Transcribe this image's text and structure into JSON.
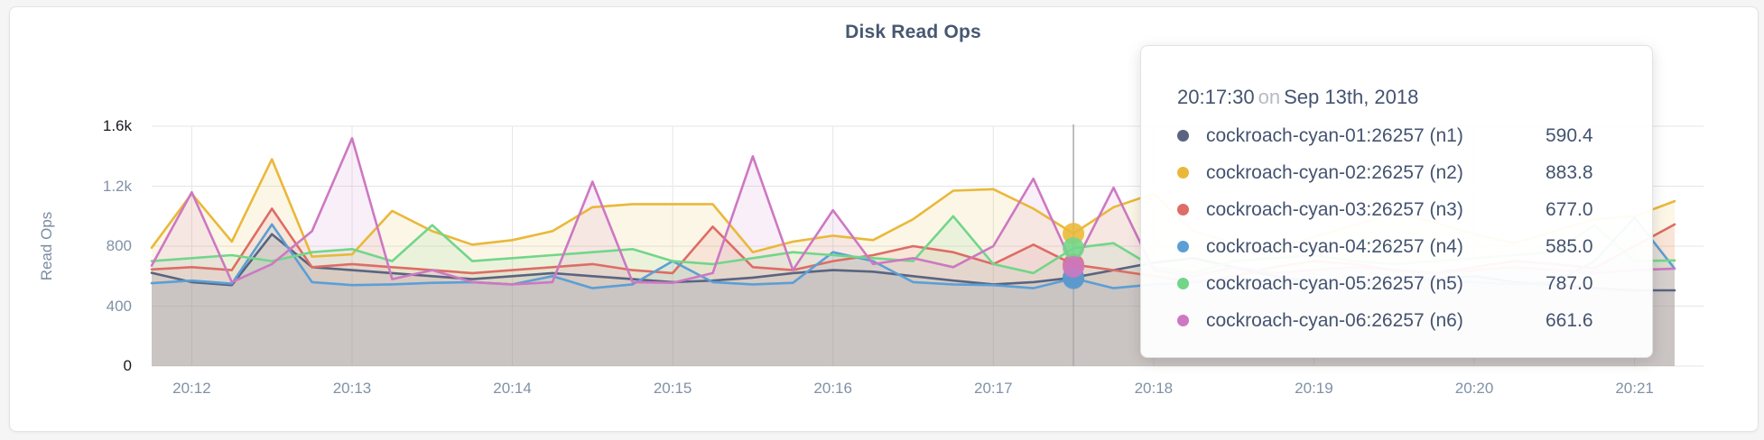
{
  "page": {
    "title": "Disk Read Ops"
  },
  "y_axis": {
    "label": "Read Ops"
  },
  "tooltip": {
    "time": "20:17:30",
    "preposition": "on",
    "date": "Sep 13th, 2018",
    "rows": [
      {
        "label": "cockroach-cyan-01:26257 (n1)",
        "value": "590.4"
      },
      {
        "label": "cockroach-cyan-02:26257 (n2)",
        "value": "883.8"
      },
      {
        "label": "cockroach-cyan-03:26257 (n3)",
        "value": "677.0"
      },
      {
        "label": "cockroach-cyan-04:26257 (n4)",
        "value": "585.0"
      },
      {
        "label": "cockroach-cyan-05:26257 (n5)",
        "value": "787.0"
      },
      {
        "label": "cockroach-cyan-06:26257 (n6)",
        "value": "661.6"
      }
    ]
  },
  "colors": {
    "title_text": "#475872",
    "axis_text": "#8091a7",
    "axis_extreme_text": "#16191f",
    "grid": "#e5e5e5",
    "crosshair": "#a9a9ab",
    "card_background": "#ffffff",
    "page_background": "#f5f5f6"
  },
  "chart_data": {
    "type": "line",
    "title": "Disk Read Ops",
    "xlabel": "",
    "ylabel": "Read Ops",
    "ylim": [
      0,
      1600
    ],
    "grid": true,
    "x_start": "20:11:45",
    "x_interval_seconds": 15,
    "x_tick_labels": [
      "20:12",
      "20:13",
      "20:14",
      "20:15",
      "20:16",
      "20:17",
      "20:18",
      "20:19",
      "20:20",
      "20:21"
    ],
    "y_ticks": [
      0,
      400,
      800,
      1200,
      1600
    ],
    "y_tick_labels": [
      "0",
      "400",
      "800",
      "1.2k",
      "1.6k"
    ],
    "crosshair": {
      "time": "20:17:30",
      "index": 23
    },
    "series": [
      {
        "name": "cockroach-cyan-01:26257 (n1)",
        "color": "#596480",
        "values": [
          622,
          560,
          540,
          880,
          660,
          640,
          620,
          600,
          580,
          600,
          620,
          600,
          580,
          560,
          570,
          590,
          620,
          640,
          630,
          600,
          570,
          545,
          560,
          590.4,
          640,
          690,
          720,
          660,
          600,
          560,
          545,
          560,
          580,
          600,
          560,
          540,
          520,
          505,
          505
        ]
      },
      {
        "name": "cockroach-cyan-02:26257 (n2)",
        "color": "#eab839",
        "values": [
          790,
          1150,
          830,
          1380,
          730,
          745,
          1035,
          900,
          810,
          840,
          900,
          1060,
          1080,
          1080,
          1080,
          760,
          830,
          870,
          840,
          980,
          1170,
          1180,
          1050,
          883.8,
          1060,
          1150,
          900,
          820,
          780,
          860,
          940,
          1020,
          960,
          880,
          820,
          900,
          980,
          1000,
          1100
        ]
      },
      {
        "name": "cockroach-cyan-03:26257 (n3)",
        "color": "#dd6d65",
        "values": [
          645,
          660,
          640,
          1050,
          660,
          680,
          660,
          640,
          620,
          640,
          660,
          680,
          640,
          620,
          930,
          660,
          640,
          700,
          740,
          800,
          760,
          680,
          810,
          677.0,
          640,
          600,
          560,
          600,
          660,
          700,
          680,
          640,
          620,
          660,
          700,
          680,
          654,
          800,
          945
        ]
      },
      {
        "name": "cockroach-cyan-04:26257 (n4)",
        "color": "#5b9fd6",
        "values": [
          553,
          570,
          550,
          945,
          560,
          540,
          545,
          555,
          560,
          545,
          600,
          520,
          545,
          700,
          560,
          545,
          555,
          760,
          700,
          560,
          545,
          540,
          520,
          585.0,
          520,
          545,
          560,
          580,
          560,
          545,
          555,
          560,
          580,
          560,
          545,
          560,
          700,
          990,
          650
        ]
      },
      {
        "name": "cockroach-cyan-05:26257 (n5)",
        "color": "#72d689",
        "values": [
          700,
          720,
          740,
          700,
          760,
          780,
          700,
          940,
          700,
          720,
          740,
          760,
          780,
          700,
          680,
          720,
          760,
          740,
          720,
          700,
          1000,
          680,
          620,
          787.0,
          820,
          660,
          620,
          700,
          720,
          740,
          700,
          680,
          700,
          720,
          740,
          760,
          940,
          700,
          705
        ]
      },
      {
        "name": "cockroach-cyan-06:26257 (n6)",
        "color": "#cd78c2",
        "values": [
          670,
          1160,
          560,
          680,
          900,
          1520,
          580,
          640,
          560,
          545,
          560,
          1230,
          560,
          555,
          620,
          1400,
          640,
          1040,
          680,
          720,
          660,
          800,
          1250,
          661.6,
          1190,
          640,
          600,
          660,
          620,
          640,
          660,
          640,
          620,
          640,
          660,
          640,
          620,
          640,
          650
        ]
      }
    ]
  }
}
